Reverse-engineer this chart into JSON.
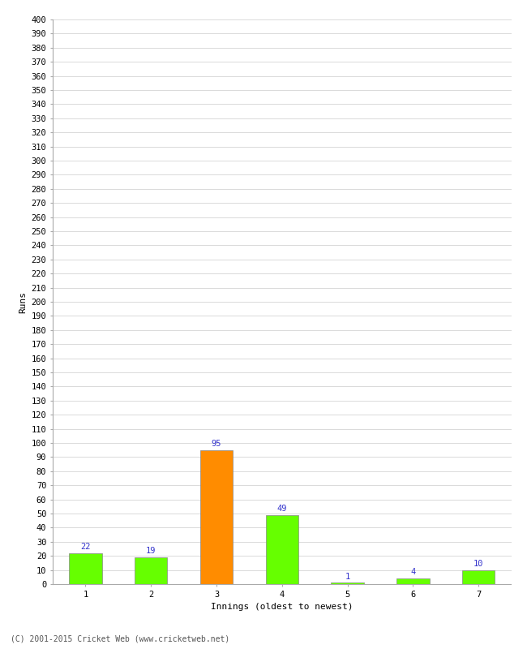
{
  "title": "",
  "xlabel": "Innings (oldest to newest)",
  "ylabel": "Runs",
  "categories": [
    "1",
    "2",
    "3",
    "4",
    "5",
    "6",
    "7"
  ],
  "values": [
    22,
    19,
    95,
    49,
    1,
    4,
    10
  ],
  "bar_colors": [
    "#66ff00",
    "#66ff00",
    "#ff8c00",
    "#66ff00",
    "#66ff00",
    "#66ff00",
    "#66ff00"
  ],
  "value_labels": [
    22,
    19,
    95,
    49,
    1,
    4,
    10
  ],
  "ylim": [
    0,
    400
  ],
  "yticks": [
    0,
    10,
    20,
    30,
    40,
    50,
    60,
    70,
    80,
    90,
    100,
    110,
    120,
    130,
    140,
    150,
    160,
    170,
    180,
    190,
    200,
    210,
    220,
    230,
    240,
    250,
    260,
    270,
    280,
    290,
    300,
    310,
    320,
    330,
    340,
    350,
    360,
    370,
    380,
    390,
    400
  ],
  "background_color": "#ffffff",
  "grid_color": "#cccccc",
  "label_color": "#3333cc",
  "bar_edge_color": "#888888",
  "axis_label_fontsize": 8,
  "tick_fontsize": 7.5,
  "value_label_fontsize": 7.5,
  "footer": "(C) 2001-2015 Cricket Web (www.cricketweb.net)",
  "footer_fontsize": 7
}
